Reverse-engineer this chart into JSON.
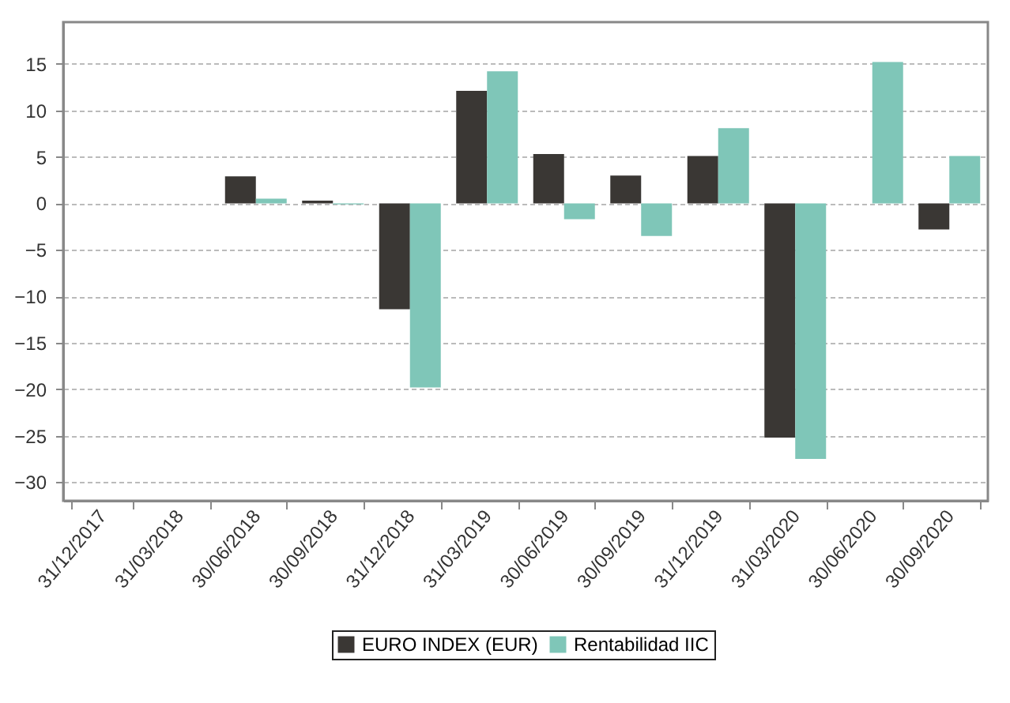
{
  "chart_data": {
    "type": "bar",
    "categories": [
      "31/12/2017",
      "31/03/2018",
      "30/06/2018",
      "30/09/2018",
      "31/12/2018",
      "31/03/2019",
      "30/06/2019",
      "30/09/2019",
      "31/12/2019",
      "31/03/2020",
      "30/06/2020",
      "30/09/2020"
    ],
    "series": [
      {
        "name": "EURO INDEX (EUR)",
        "color": "#3a3734",
        "values": [
          null,
          null,
          2.9,
          0.3,
          -11.4,
          12.1,
          5.3,
          3.0,
          5.1,
          -25.2,
          null,
          -2.8
        ]
      },
      {
        "name": "Rentabilidad IIC",
        "color": "#7fc6b8",
        "values": [
          null,
          null,
          0.5,
          -0.1,
          -19.8,
          14.2,
          -1.7,
          -3.5,
          8.1,
          -27.5,
          15.2,
          5.1
        ]
      }
    ],
    "ylim": [
      -32,
      19.5
    ],
    "yticks": [
      -30,
      -25,
      -20,
      -15,
      -10,
      -5,
      0,
      5,
      10,
      15
    ],
    "grid": "y",
    "legend": "bottom"
  }
}
